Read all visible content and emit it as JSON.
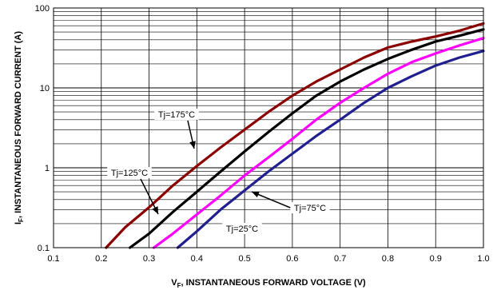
{
  "chart_data": {
    "type": "line",
    "x_scale": "linear",
    "y_scale": "log",
    "xlim": [
      0.1,
      1.0
    ],
    "ylim": [
      0.1,
      100
    ],
    "grid": true,
    "x_ticks": [
      "0.1",
      "0.2",
      "0.3",
      "0.4",
      "0.5",
      "0.6",
      "0.7",
      "0.8",
      "0.9",
      "1.0"
    ],
    "y_ticks": [
      "0.1",
      "1",
      "10",
      "100"
    ],
    "xlabel_main": "V",
    "xlabel_sub": "F",
    "xlabel_rest": ", INSTANTANEOUS FORWARD VOLTAGE (V)",
    "ylabel_main": "I",
    "ylabel_sub": "F",
    "ylabel_rest": ", INSTANTANEOUS FORWARD CURRENT (A)",
    "series": [
      {
        "name": "Tj=175°C",
        "color": "#8b0000",
        "x": [
          0.21,
          0.25,
          0.3,
          0.35,
          0.4,
          0.45,
          0.5,
          0.55,
          0.6,
          0.65,
          0.7,
          0.75,
          0.8,
          0.85,
          0.9,
          0.95,
          1.0
        ],
        "y": [
          0.1,
          0.18,
          0.32,
          0.6,
          1.05,
          1.8,
          3.0,
          5.0,
          8.0,
          12.0,
          17.0,
          24.0,
          32.0,
          38.0,
          44.0,
          52.0,
          64.0
        ]
      },
      {
        "name": "Tj=125°C",
        "color": "#000000",
        "x": [
          0.26,
          0.3,
          0.35,
          0.4,
          0.45,
          0.5,
          0.55,
          0.6,
          0.65,
          0.7,
          0.75,
          0.8,
          0.85,
          0.9,
          0.95,
          1.0
        ],
        "y": [
          0.1,
          0.15,
          0.28,
          0.5,
          0.9,
          1.6,
          2.8,
          4.8,
          8.0,
          12.0,
          17.0,
          23.0,
          30.0,
          38.0,
          45.0,
          54.0
        ]
      },
      {
        "name": "Tj=75°C",
        "color": "#ff00ff",
        "x": [
          0.31,
          0.35,
          0.4,
          0.45,
          0.5,
          0.55,
          0.6,
          0.65,
          0.7,
          0.75,
          0.8,
          0.85,
          0.9,
          0.95,
          1.0
        ],
        "y": [
          0.1,
          0.15,
          0.26,
          0.45,
          0.8,
          1.35,
          2.3,
          4.0,
          6.5,
          10.0,
          15.0,
          21.0,
          27.0,
          34.0,
          42.0
        ]
      },
      {
        "name": "Tj=25°C",
        "color": "#1f1f8f",
        "x": [
          0.36,
          0.4,
          0.45,
          0.5,
          0.55,
          0.6,
          0.65,
          0.7,
          0.75,
          0.8,
          0.85,
          0.9,
          0.95,
          1.0
        ],
        "y": [
          0.1,
          0.16,
          0.3,
          0.52,
          0.9,
          1.5,
          2.5,
          4.0,
          6.5,
          10.0,
          14.0,
          19.0,
          24.0,
          29.0
        ]
      }
    ],
    "annotations": [
      {
        "text": "Tj=175°C",
        "series": 0
      },
      {
        "text": "Tj=125°C",
        "series": 1
      },
      {
        "text": "Tj=75°C",
        "series": 2
      },
      {
        "text": "Tj=25°C",
        "series": 3
      }
    ]
  }
}
